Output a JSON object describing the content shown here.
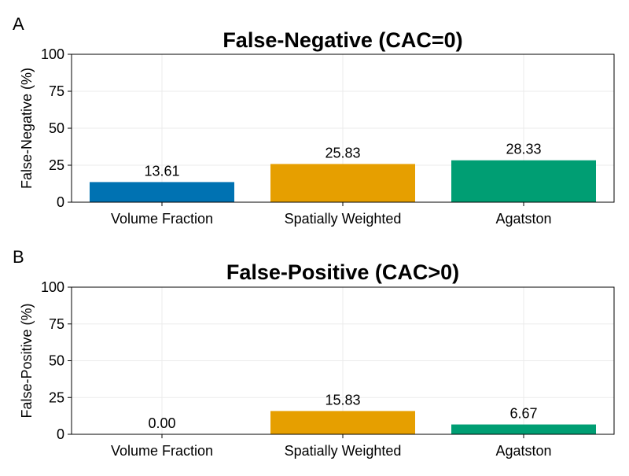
{
  "chart_data": [
    {
      "type": "bar",
      "panel": "A",
      "title": "False-Negative (CAC=0)",
      "xlabel": "",
      "ylabel": "False-Negative (%)",
      "categories": [
        "Volume Fraction",
        "Spatially Weighted",
        "Agatston"
      ],
      "values": [
        13.61,
        25.83,
        28.33
      ],
      "value_labels": [
        "13.61",
        "25.83",
        "28.33"
      ],
      "colors": [
        "#0072b2",
        "#e69f00",
        "#009e73"
      ],
      "ylim": [
        0,
        100
      ],
      "yticks": [
        0,
        25,
        50,
        75,
        100
      ],
      "grid": true,
      "legend": "none"
    },
    {
      "type": "bar",
      "panel": "B",
      "title": "False-Positive (CAC>0)",
      "xlabel": "",
      "ylabel": "False-Positive (%)",
      "categories": [
        "Volume Fraction",
        "Spatially Weighted",
        "Agatston"
      ],
      "values": [
        0.0,
        15.83,
        6.67
      ],
      "value_labels": [
        "0.00",
        "15.83",
        "6.67"
      ],
      "colors": [
        "#0072b2",
        "#e69f00",
        "#009e73"
      ],
      "ylim": [
        0,
        100
      ],
      "yticks": [
        0,
        25,
        50,
        75,
        100
      ],
      "grid": true,
      "legend": "none"
    }
  ]
}
